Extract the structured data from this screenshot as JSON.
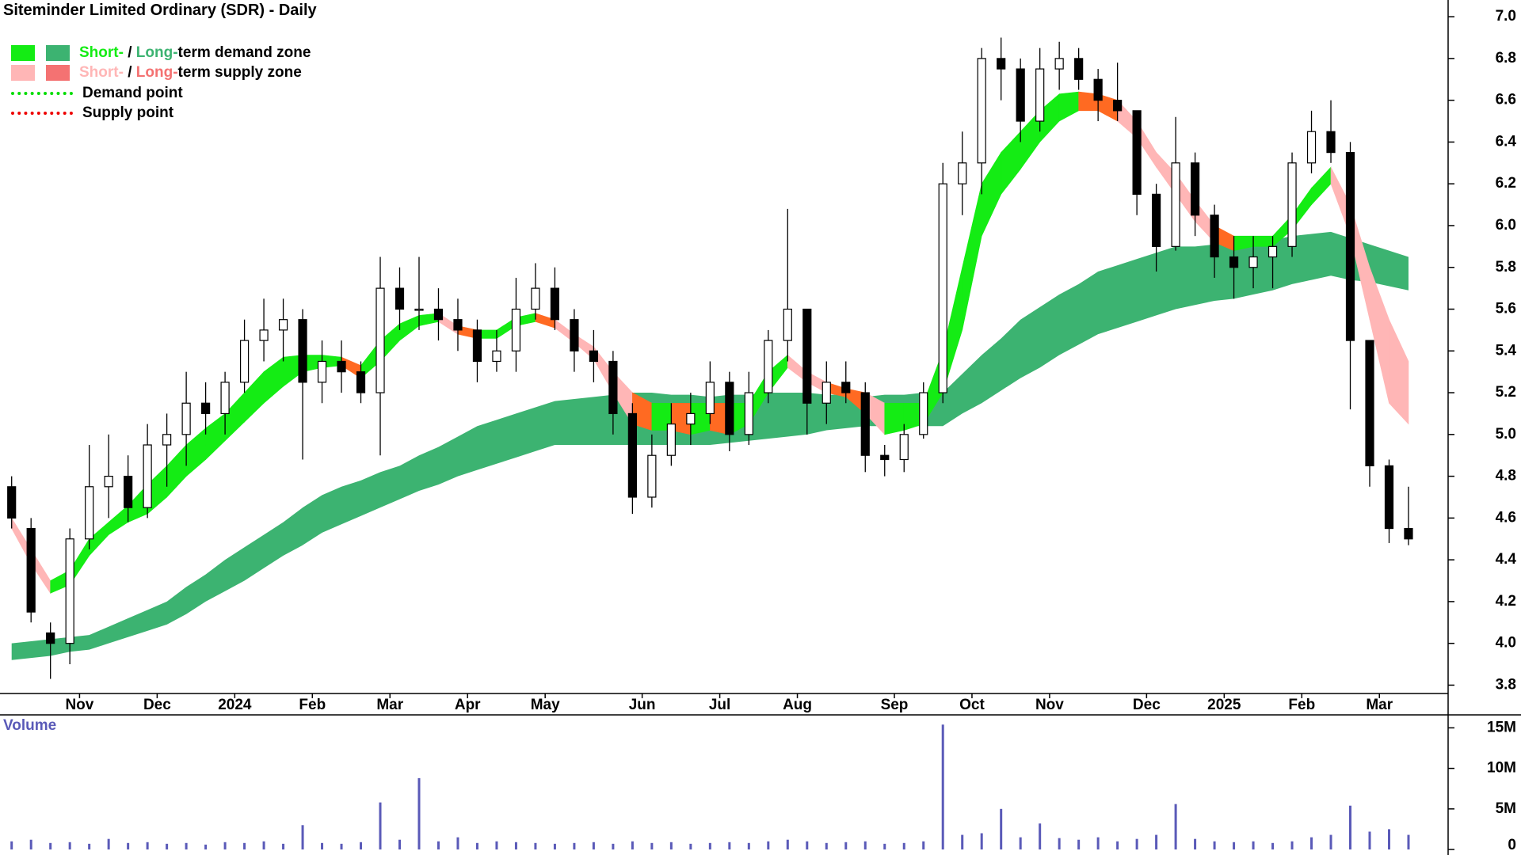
{
  "chart_data": {
    "type": "candlestick",
    "title": "Siteminder Limited Ordinary (SDR) - Daily",
    "categories": [
      null,
      null,
      null,
      null,
      "Nov",
      null,
      null,
      null,
      "Dec",
      null,
      null,
      null,
      "2024",
      null,
      null,
      null,
      "Feb",
      null,
      null,
      null,
      "Mar",
      null,
      null,
      null,
      "Apr",
      null,
      null,
      null,
      "May",
      null,
      null,
      null,
      null,
      "Jun",
      null,
      null,
      null,
      "Jul",
      null,
      null,
      null,
      "Aug",
      null,
      null,
      null,
      null,
      "Sep",
      null,
      null,
      null,
      "Oct",
      null,
      null,
      null,
      "Nov",
      null,
      null,
      null,
      null,
      "Dec",
      null,
      null,
      null,
      "2025",
      null,
      null,
      null,
      "Feb",
      null,
      null,
      null,
      "Mar",
      null
    ],
    "open": [
      4.75,
      4.55,
      4.05,
      4.0,
      4.5,
      4.75,
      4.8,
      4.65,
      4.95,
      5.0,
      5.15,
      5.1,
      5.25,
      5.45,
      5.5,
      5.55,
      5.25,
      5.35,
      5.3,
      5.2,
      5.7,
      5.6,
      5.6,
      5.55,
      5.5,
      5.35,
      5.4,
      5.6,
      5.7,
      5.55,
      5.4,
      5.35,
      5.1,
      4.7,
      4.9,
      5.05,
      5.1,
      5.25,
      5.0,
      5.2,
      5.45,
      5.6,
      5.15,
      5.25,
      5.2,
      4.9,
      4.88,
      5.0,
      5.2,
      6.2,
      6.3,
      6.8,
      6.75,
      6.5,
      6.75,
      6.8,
      6.7,
      6.6,
      6.55,
      6.15,
      5.9,
      6.3,
      6.05,
      5.85,
      5.8,
      5.85,
      5.9,
      6.3,
      6.45,
      6.35,
      5.45,
      4.85,
      4.55
    ],
    "high": [
      4.8,
      4.6,
      4.1,
      4.55,
      4.95,
      5.0,
      4.9,
      5.05,
      5.1,
      5.3,
      5.25,
      5.3,
      5.55,
      5.65,
      5.65,
      5.6,
      5.45,
      5.45,
      5.35,
      5.85,
      5.8,
      5.85,
      5.7,
      5.65,
      5.55,
      5.5,
      5.75,
      5.82,
      5.8,
      5.6,
      5.5,
      5.4,
      5.15,
      5.0,
      5.15,
      5.2,
      5.35,
      5.3,
      5.3,
      5.5,
      6.08,
      5.6,
      5.35,
      5.35,
      5.25,
      4.95,
      5.05,
      5.25,
      6.3,
      6.45,
      6.85,
      6.9,
      6.8,
      6.85,
      6.88,
      6.85,
      6.75,
      6.78,
      6.55,
      6.2,
      6.52,
      6.35,
      6.1,
      5.95,
      5.95,
      5.95,
      6.35,
      6.55,
      6.6,
      6.4,
      5.45,
      4.88,
      4.75
    ],
    "low": [
      4.55,
      4.1,
      3.83,
      3.9,
      4.45,
      4.6,
      4.58,
      4.6,
      4.75,
      4.85,
      5.0,
      5.0,
      5.2,
      5.35,
      5.35,
      4.88,
      5.15,
      5.2,
      5.15,
      4.9,
      5.5,
      5.5,
      5.45,
      5.4,
      5.25,
      5.3,
      5.3,
      5.55,
      5.5,
      5.3,
      5.25,
      5.0,
      4.62,
      4.65,
      4.85,
      4.95,
      5.05,
      4.92,
      4.95,
      5.15,
      5.35,
      5.0,
      5.05,
      5.15,
      4.82,
      4.8,
      4.82,
      4.98,
      5.15,
      6.05,
      6.15,
      6.6,
      6.4,
      6.45,
      6.65,
      6.65,
      6.5,
      6.5,
      6.05,
      5.78,
      5.88,
      5.95,
      5.75,
      5.65,
      5.7,
      5.7,
      5.85,
      6.25,
      6.3,
      5.12,
      4.75,
      4.48,
      4.47
    ],
    "close": [
      4.6,
      4.15,
      4.0,
      4.5,
      4.75,
      4.8,
      4.65,
      4.95,
      5.0,
      5.15,
      5.1,
      5.25,
      5.45,
      5.5,
      5.55,
      5.25,
      5.35,
      5.3,
      5.2,
      5.7,
      5.6,
      5.6,
      5.55,
      5.5,
      5.35,
      5.4,
      5.6,
      5.7,
      5.55,
      5.4,
      5.35,
      5.1,
      4.7,
      4.9,
      5.05,
      5.1,
      5.25,
      5.0,
      5.2,
      5.45,
      5.6,
      5.15,
      5.25,
      5.2,
      4.9,
      4.88,
      5.0,
      5.2,
      6.2,
      6.3,
      6.8,
      6.75,
      6.5,
      6.75,
      6.8,
      6.7,
      6.6,
      6.55,
      6.15,
      5.9,
      6.3,
      6.05,
      5.85,
      5.8,
      5.85,
      5.9,
      6.3,
      6.45,
      6.35,
      5.45,
      4.85,
      4.55,
      4.5
    ],
    "long_band": {
      "upper": [
        4.0,
        4.01,
        4.02,
        4.03,
        4.04,
        4.08,
        4.12,
        4.16,
        4.2,
        4.27,
        4.33,
        4.4,
        4.46,
        4.52,
        4.58,
        4.65,
        4.71,
        4.75,
        4.78,
        4.82,
        4.85,
        4.9,
        4.94,
        4.99,
        5.04,
        5.07,
        5.1,
        5.13,
        5.16,
        5.17,
        5.18,
        5.19,
        5.2,
        5.2,
        5.19,
        5.19,
        5.18,
        5.19,
        5.19,
        5.2,
        5.2,
        5.2,
        5.19,
        5.19,
        5.18,
        5.19,
        5.19,
        5.2,
        5.2,
        5.29,
        5.38,
        5.46,
        5.55,
        5.61,
        5.67,
        5.72,
        5.78,
        5.81,
        5.84,
        5.87,
        5.9,
        5.9,
        5.91,
        5.91,
        5.92,
        5.93,
        5.95,
        5.96,
        5.97,
        5.94,
        5.91,
        5.88,
        5.85
      ],
      "lower": [
        3.92,
        3.93,
        3.94,
        3.96,
        3.97,
        4.0,
        4.03,
        4.06,
        4.09,
        4.14,
        4.2,
        4.25,
        4.3,
        4.36,
        4.42,
        4.47,
        4.53,
        4.57,
        4.61,
        4.65,
        4.69,
        4.73,
        4.76,
        4.8,
        4.83,
        4.86,
        4.89,
        4.92,
        4.95,
        4.95,
        4.95,
        4.95,
        4.95,
        4.95,
        4.95,
        4.95,
        4.95,
        4.96,
        4.97,
        4.98,
        4.99,
        5.0,
        5.02,
        5.03,
        5.04,
        5.04,
        5.04,
        5.04,
        5.04,
        5.1,
        5.15,
        5.21,
        5.27,
        5.32,
        5.38,
        5.43,
        5.48,
        5.51,
        5.54,
        5.57,
        5.6,
        5.62,
        5.64,
        5.65,
        5.67,
        5.69,
        5.72,
        5.74,
        5.76,
        5.74,
        5.73,
        5.71,
        5.69
      ]
    },
    "short_band": {
      "upper": [
        4.6,
        4.45,
        4.3,
        4.35,
        4.5,
        4.58,
        4.66,
        4.76,
        4.85,
        4.95,
        5.03,
        5.1,
        5.2,
        5.3,
        5.37,
        5.38,
        5.38,
        5.37,
        5.33,
        5.45,
        5.53,
        5.57,
        5.58,
        5.52,
        5.5,
        5.5,
        5.56,
        5.58,
        5.55,
        5.48,
        5.42,
        5.3,
        5.2,
        5.15,
        5.15,
        5.15,
        5.15,
        5.15,
        5.15,
        5.3,
        5.38,
        5.3,
        5.25,
        5.22,
        5.2,
        5.15,
        5.15,
        5.15,
        5.4,
        5.8,
        6.2,
        6.35,
        6.45,
        6.55,
        6.63,
        6.64,
        6.63,
        6.6,
        6.5,
        6.35,
        6.25,
        6.12,
        6.0,
        5.95,
        5.95,
        5.95,
        6.05,
        6.18,
        6.28,
        6.1,
        5.8,
        5.55,
        5.35
      ],
      "lower": [
        4.55,
        4.38,
        4.24,
        4.28,
        4.42,
        4.52,
        4.58,
        4.62,
        4.7,
        4.8,
        4.88,
        4.97,
        5.06,
        5.15,
        5.23,
        5.3,
        5.32,
        5.33,
        5.27,
        5.35,
        5.45,
        5.52,
        5.54,
        5.48,
        5.46,
        5.46,
        5.52,
        5.54,
        5.51,
        5.44,
        5.36,
        5.2,
        5.05,
        5.02,
        5.02,
        5.0,
        5.02,
        5.0,
        5.05,
        5.2,
        5.32,
        5.25,
        5.2,
        5.18,
        5.1,
        5.0,
        5.02,
        5.05,
        5.2,
        5.5,
        5.95,
        6.15,
        6.27,
        6.4,
        6.5,
        6.55,
        6.55,
        6.5,
        6.42,
        6.28,
        6.15,
        6.02,
        5.92,
        5.88,
        5.9,
        5.9,
        5.98,
        6.1,
        6.2,
        5.95,
        5.55,
        5.15,
        5.05
      ]
    },
    "colors": {
      "short_demand": "#14ec14",
      "long_demand": "#3cb371",
      "short_supply": "#ffb6b6",
      "long_supply": "#f47272",
      "overlap": "#ff6a22",
      "demand_point": "#00dd00",
      "supply_point": "#ee0000",
      "volume": "#5a5ab8"
    },
    "legend": [
      {
        "parts": [
          "Short-",
          " / ",
          "Long-",
          "term demand zone"
        ]
      },
      {
        "parts": [
          "Short-",
          " / ",
          "Long-",
          "term supply zone"
        ]
      },
      {
        "parts": [
          "Demand point"
        ]
      },
      {
        "parts": [
          "Supply point"
        ]
      }
    ],
    "ylim": [
      3.76,
      7.08
    ],
    "yticks": [
      {
        "value": 7,
        "label": "7.0"
      },
      6.8,
      6.6,
      6.4,
      6.2,
      {
        "value": 6,
        "label": "6.0"
      },
      5.8,
      5.6,
      5.4,
      5.2,
      {
        "value": 5,
        "label": "5.0"
      },
      4.8,
      4.6,
      4.4,
      4.2,
      {
        "value": 4,
        "label": "4.0"
      },
      3.8
    ],
    "volume": {
      "title": "Volume",
      "values": [
        1000000,
        1200000,
        800000,
        900000,
        700000,
        1300000,
        800000,
        900000,
        700000,
        800000,
        600000,
        900000,
        800000,
        1000000,
        700000,
        3000000,
        800000,
        700000,
        900000,
        5800000,
        1200000,
        8800000,
        1000000,
        1500000,
        800000,
        1000000,
        900000,
        800000,
        700000,
        800000,
        900000,
        700000,
        1000000,
        800000,
        900000,
        700000,
        800000,
        900000,
        800000,
        1000000,
        1200000,
        1000000,
        800000,
        900000,
        1000000,
        700000,
        800000,
        1000000,
        15400000,
        1800000,
        2000000,
        5000000,
        1500000,
        3200000,
        1400000,
        1200000,
        1500000,
        1000000,
        1300000,
        1800000,
        5600000,
        1300000,
        1000000,
        900000,
        1000000,
        800000,
        1000000,
        1500000,
        1800000,
        5400000,
        2200000,
        2500000,
        1800000
      ],
      "ylim": [
        0,
        16600000
      ],
      "yticks": [
        {
          "value": 15000000,
          "label": "15M"
        },
        {
          "value": 10000000,
          "label": "10M"
        },
        {
          "value": 5000000,
          "label": "5M"
        },
        0
      ]
    }
  }
}
